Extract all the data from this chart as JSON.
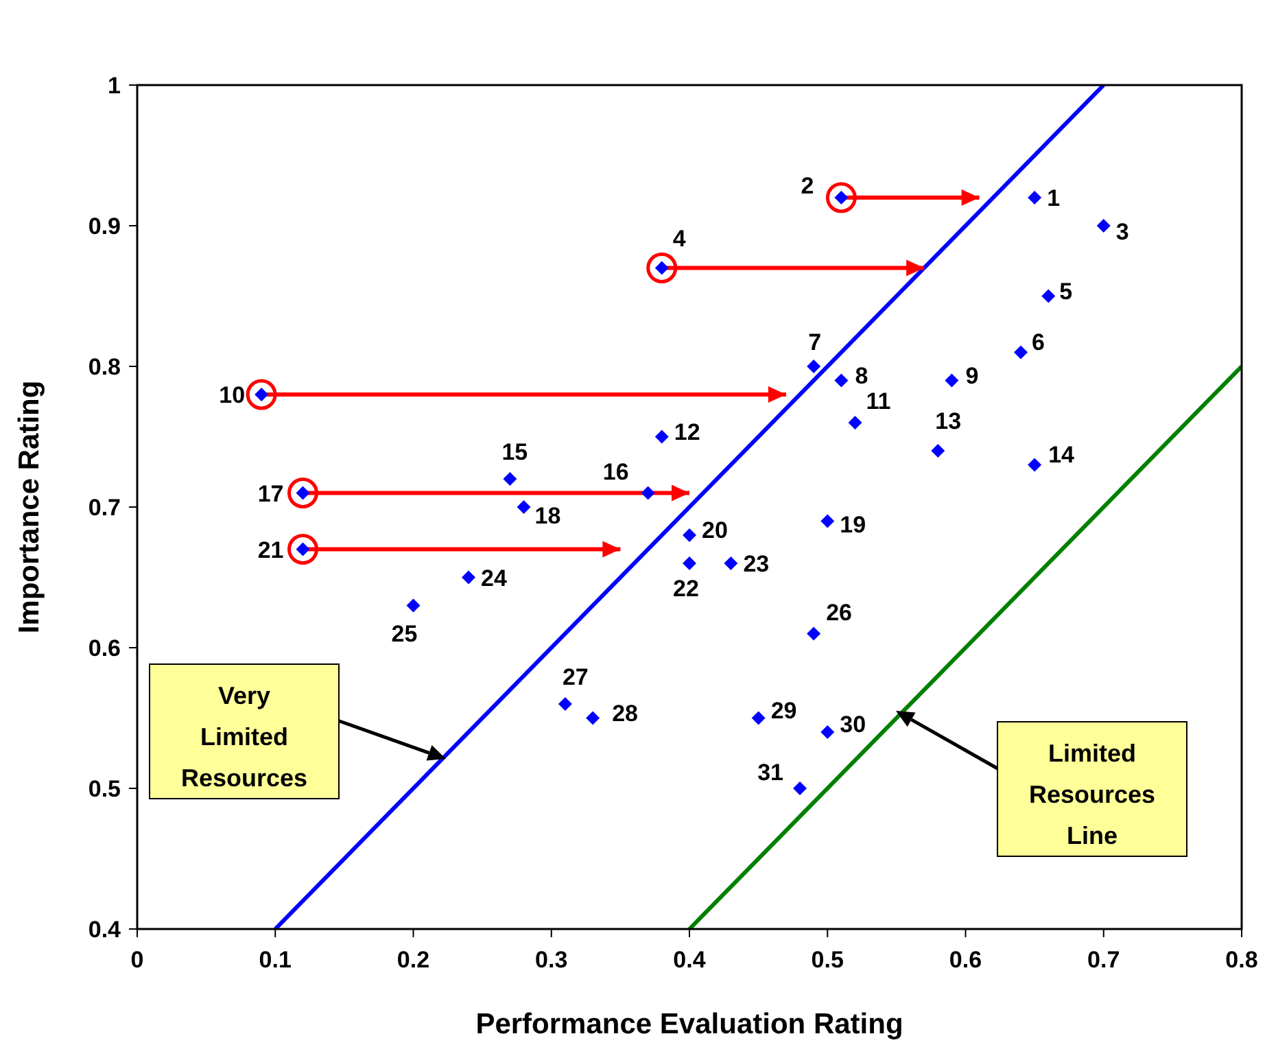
{
  "chart_data": {
    "type": "scatter",
    "xlabel": "Performance Evaluation Rating",
    "ylabel": "Importance Rating",
    "xlim": [
      0,
      0.8
    ],
    "ylim": [
      0.4,
      1
    ],
    "xticks": [
      0,
      0.1,
      0.2,
      0.3,
      0.4,
      0.5,
      0.6,
      0.7,
      0.8
    ],
    "yticks": [
      0.4,
      0.5,
      0.6,
      0.7,
      0.8,
      0.9,
      1
    ],
    "grid": false,
    "series": [
      {
        "marker": "diamond",
        "color": "#0000ff",
        "x": [
          0.65,
          0.51,
          0.7,
          0.38,
          0.66,
          0.64,
          0.49,
          0.51,
          0.59,
          0.09,
          0.52,
          0.38,
          0.58,
          0.65,
          0.27,
          0.37,
          0.12,
          0.28,
          0.5,
          0.4,
          0.12,
          0.4,
          0.43,
          0.24,
          0.2,
          0.49,
          0.31,
          0.33,
          0.45,
          0.5,
          0.48
        ],
        "values": [
          0.92,
          0.92,
          0.9,
          0.87,
          0.85,
          0.81,
          0.8,
          0.79,
          0.79,
          0.78,
          0.76,
          0.75,
          0.74,
          0.73,
          0.72,
          0.71,
          0.71,
          0.7,
          0.69,
          0.68,
          0.67,
          0.66,
          0.66,
          0.65,
          0.63,
          0.61,
          0.56,
          0.55,
          0.55,
          0.54,
          0.5
        ]
      },
      {
        "marker": "circle",
        "color": "#ff0000",
        "x": [
          0.51,
          0.38,
          0.09,
          0.12,
          0.12
        ],
        "values": [
          0.92,
          0.87,
          0.78,
          0.71,
          0.67
        ],
        "xerrors": [
          [
            0.51,
            0.61
          ],
          [
            0.38,
            0.57
          ],
          [
            0.09,
            0.47
          ],
          [
            0.12,
            0.4
          ],
          [
            0.12,
            0.35
          ]
        ]
      },
      {
        "type": "line",
        "color": "#0000ff",
        "x": [
          0.1,
          0.7
        ],
        "values": [
          0.4,
          1.0
        ]
      },
      {
        "type": "line",
        "color": "#008000",
        "x": [
          0.4,
          0.8
        ],
        "values": [
          0.4,
          0.8
        ]
      }
    ],
    "annotations": [
      "Very Limited Resources",
      "Limited Resources Line",
      {
        "text": "1",
        "x": 0.65,
        "y": 0.92
      },
      {
        "text": "2",
        "x": 0.51,
        "y": 0.92
      },
      {
        "text": "3",
        "x": 0.7,
        "y": 0.9
      },
      {
        "text": "4",
        "x": 0.38,
        "y": 0.87
      },
      {
        "text": "5",
        "x": 0.66,
        "y": 0.85
      },
      {
        "text": "6",
        "x": 0.64,
        "y": 0.81
      },
      {
        "text": "7",
        "x": 0.49,
        "y": 0.8
      },
      {
        "text": "8",
        "x": 0.51,
        "y": 0.79
      },
      {
        "text": "9",
        "x": 0.59,
        "y": 0.79
      },
      {
        "text": "10",
        "x": 0.09,
        "y": 0.78
      },
      {
        "text": "11",
        "x": 0.52,
        "y": 0.76
      },
      {
        "text": "12",
        "x": 0.38,
        "y": 0.75
      },
      {
        "text": "13",
        "x": 0.58,
        "y": 0.74
      },
      {
        "text": "14",
        "x": 0.65,
        "y": 0.73
      },
      {
        "text": "15",
        "x": 0.27,
        "y": 0.72
      },
      {
        "text": "16",
        "x": 0.37,
        "y": 0.71
      },
      {
        "text": "17",
        "x": 0.12,
        "y": 0.71
      },
      {
        "text": "18",
        "x": 0.28,
        "y": 0.7
      },
      {
        "text": "19",
        "x": 0.5,
        "y": 0.69
      },
      {
        "text": "20",
        "x": 0.4,
        "y": 0.68
      },
      {
        "text": "21",
        "x": 0.12,
        "y": 0.67
      },
      {
        "text": "22",
        "x": 0.4,
        "y": 0.66
      },
      {
        "text": "23",
        "x": 0.43,
        "y": 0.66
      },
      {
        "text": "24",
        "x": 0.24,
        "y": 0.65
      },
      {
        "text": "25",
        "x": 0.2,
        "y": 0.63
      },
      {
        "text": "26",
        "x": 0.49,
        "y": 0.61
      },
      {
        "text": "27",
        "x": 0.31,
        "y": 0.56
      },
      {
        "text": "28",
        "x": 0.33,
        "y": 0.55
      },
      {
        "text": "29",
        "x": 0.45,
        "y": 0.55
      },
      {
        "text": "30",
        "x": 0.5,
        "y": 0.54
      },
      {
        "text": "31",
        "x": 0.48,
        "y": 0.5
      }
    ]
  }
}
